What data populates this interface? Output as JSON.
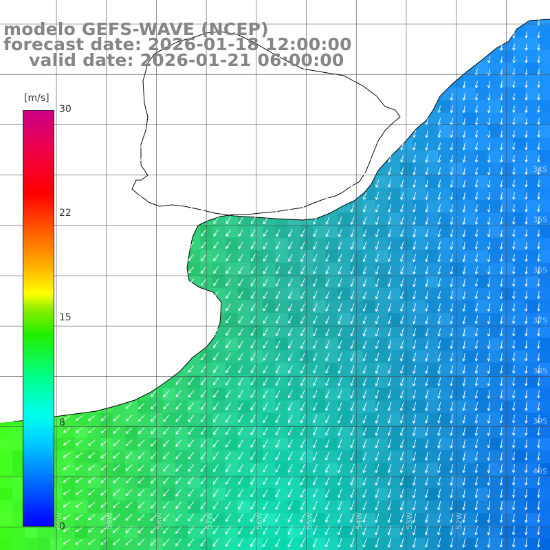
{
  "header": {
    "model_line": "modelo GEFS-WAVE (NCEP)",
    "forecast_line": "forecast date: 2026-01-18 12:00:00",
    "valid_line": "valid date: 2026-01-21 06:00:00"
  },
  "colorbar": {
    "unit_label": "[m/s]",
    "tick_30": "30",
    "tick_22": "22",
    "tick_15": "15",
    "tick_8": "8",
    "tick_0": "0"
  },
  "map": {
    "lat_labels": [
      "34S",
      "35S",
      "36S",
      "37S",
      "38S",
      "39S",
      "40S"
    ],
    "lon_labels": [
      "60W",
      "59W",
      "58W",
      "57W",
      "56W",
      "55W",
      "54W",
      "53W",
      "52W"
    ],
    "colors": {
      "land": "#ffffff",
      "coastline": "#000000",
      "gridline": "#4a4a4a",
      "arrow": "#ffffff",
      "title_text": "#858585"
    },
    "field_description_colors": {
      "north_east": "#1e96ff",
      "south_east": "#0a6cf0",
      "coastal_south_west": "#44ff22",
      "central_south": "#00ffcc"
    }
  }
}
